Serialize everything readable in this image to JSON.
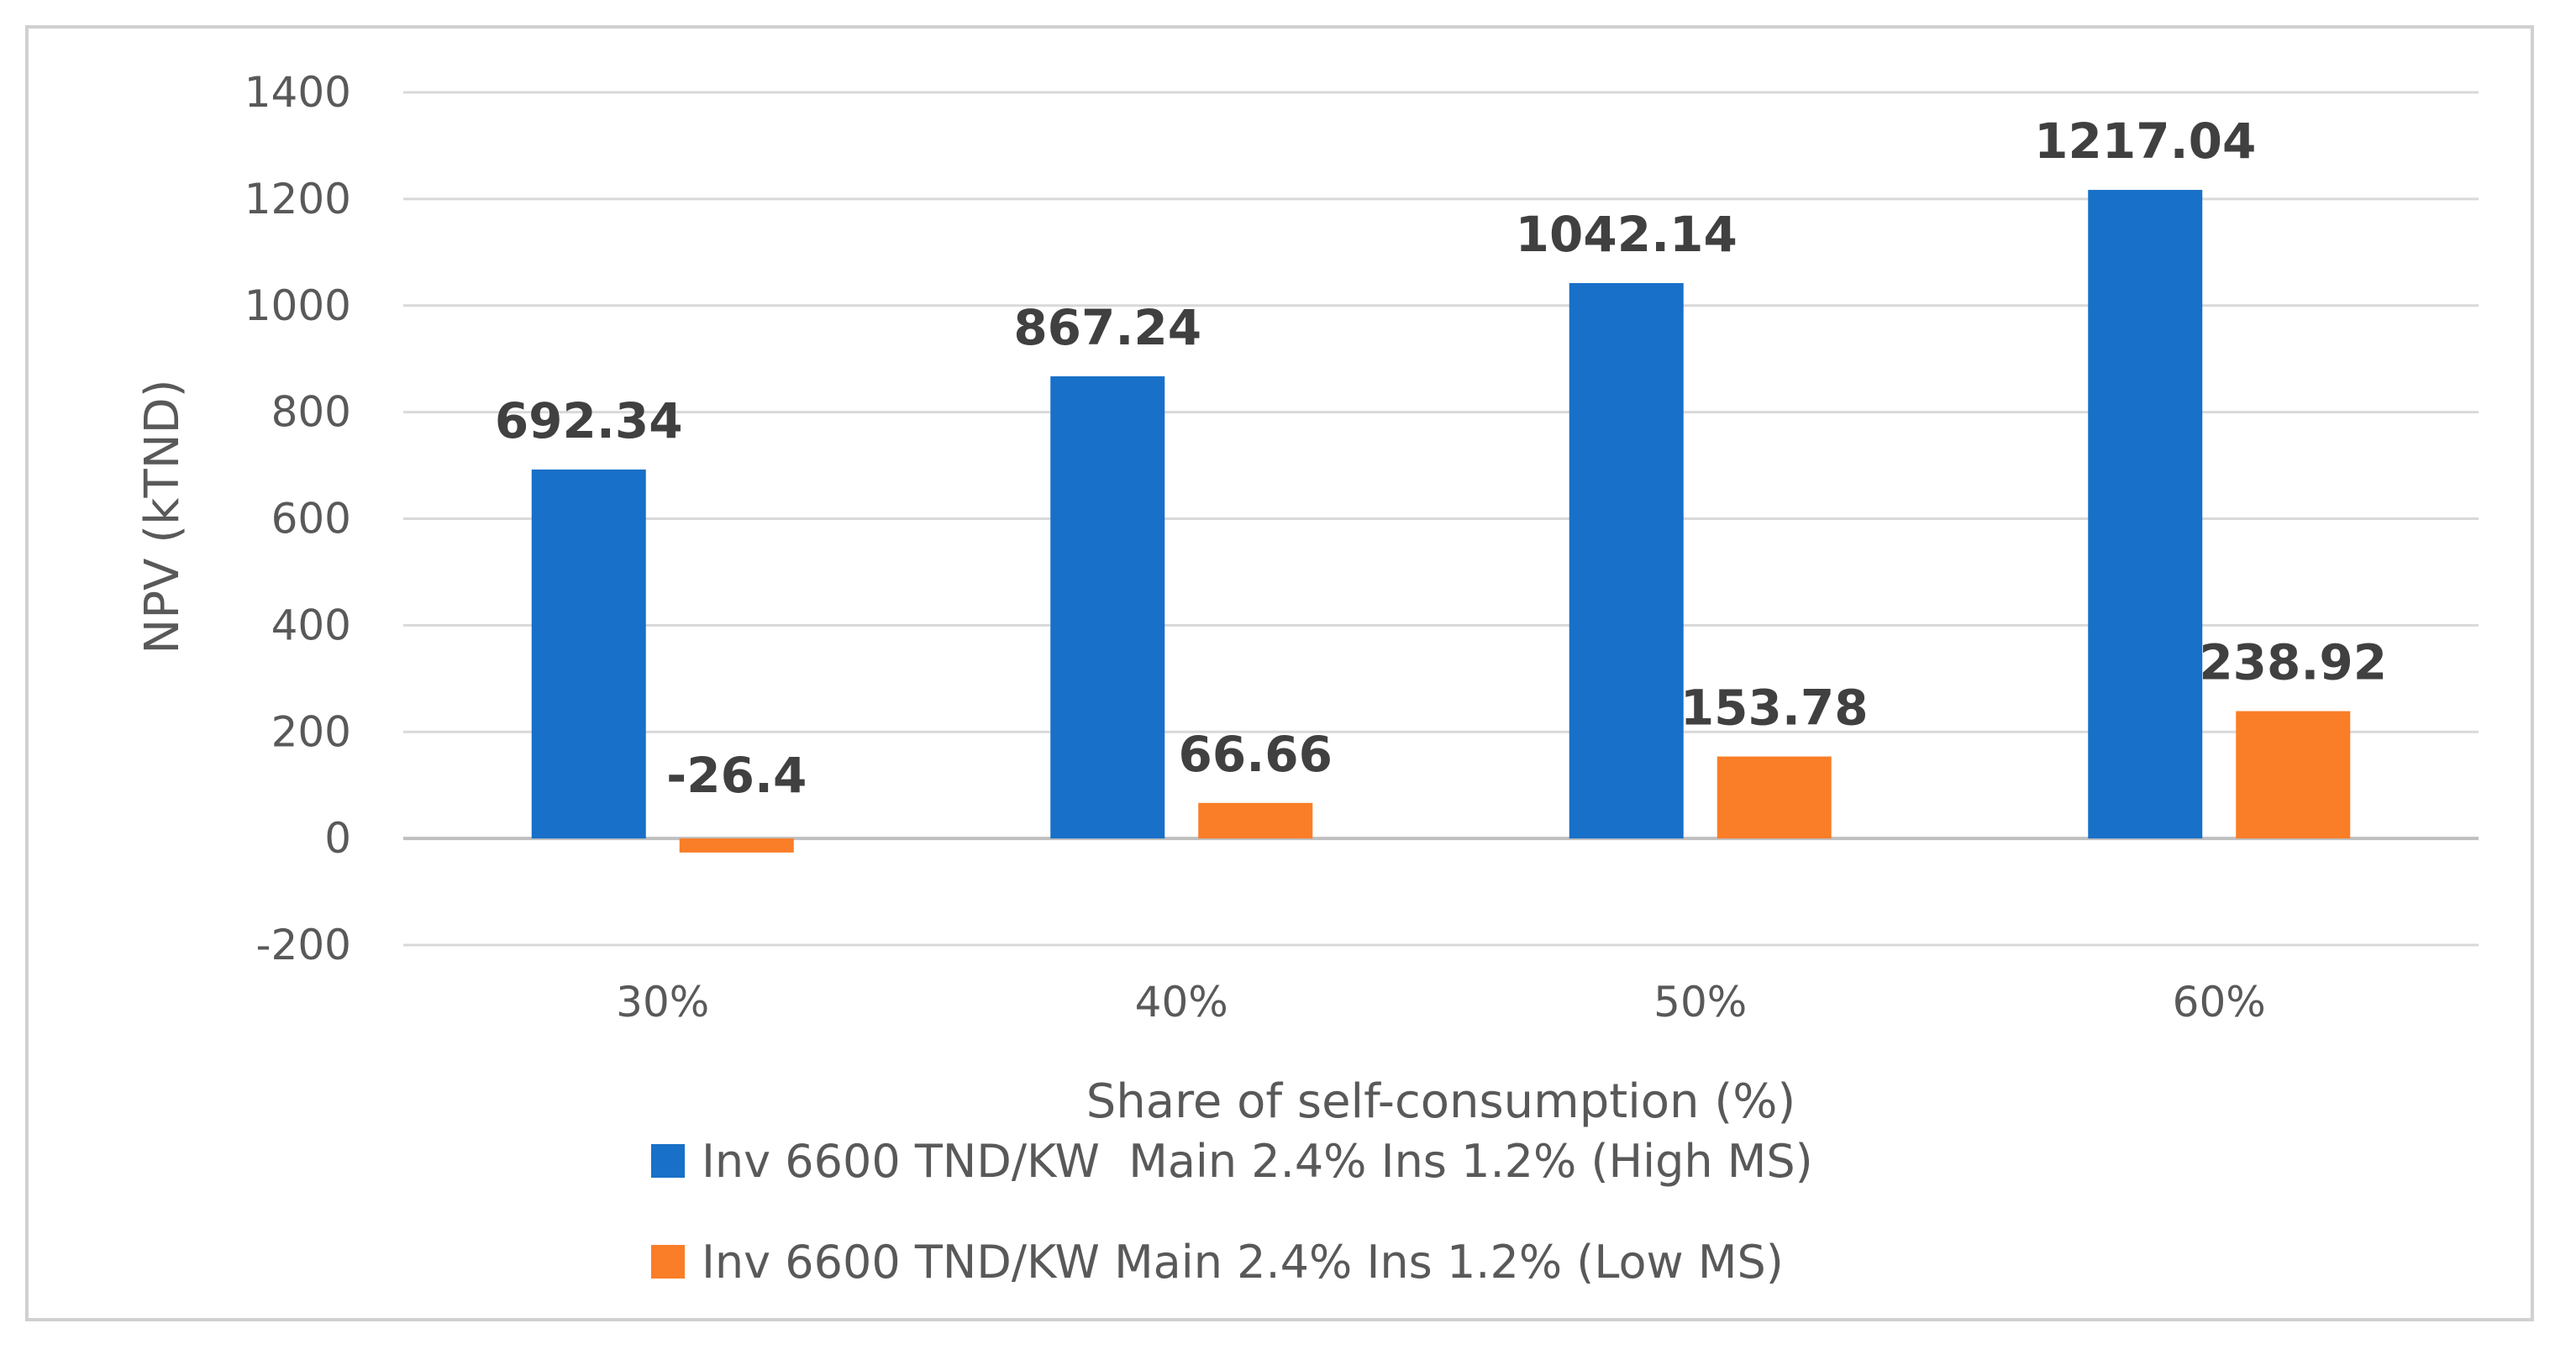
{
  "chart_data": {
    "type": "bar",
    "title": "",
    "xlabel": "Share of self-consumption (%)",
    "ylabel": "NPV (kTND)",
    "categories": [
      "30%",
      "40%",
      "50%",
      "60%"
    ],
    "ylim": [
      -200,
      1400
    ],
    "yticks": [
      -200,
      0,
      200,
      400,
      600,
      800,
      1000,
      1200,
      1400
    ],
    "grid": true,
    "legend_position": "bottom",
    "series": [
      {
        "name": "Inv 6600 TND/KW  Main 2.4% Ins 1.2% (High MS)",
        "color": "#1870c8",
        "values": [
          692.34,
          867.24,
          1042.14,
          1217.04
        ],
        "labels": [
          "692.34",
          "867.24",
          "1042.14",
          "1217.04"
        ]
      },
      {
        "name": "Inv 6600 TND/KW Main 2.4% Ins 1.2% (Low MS)",
        "color": "#fa7d27",
        "values": [
          -26.4,
          66.66,
          153.78,
          238.92
        ],
        "labels": [
          "-26.4",
          "66.66",
          "153.78",
          "238.92"
        ]
      }
    ]
  }
}
